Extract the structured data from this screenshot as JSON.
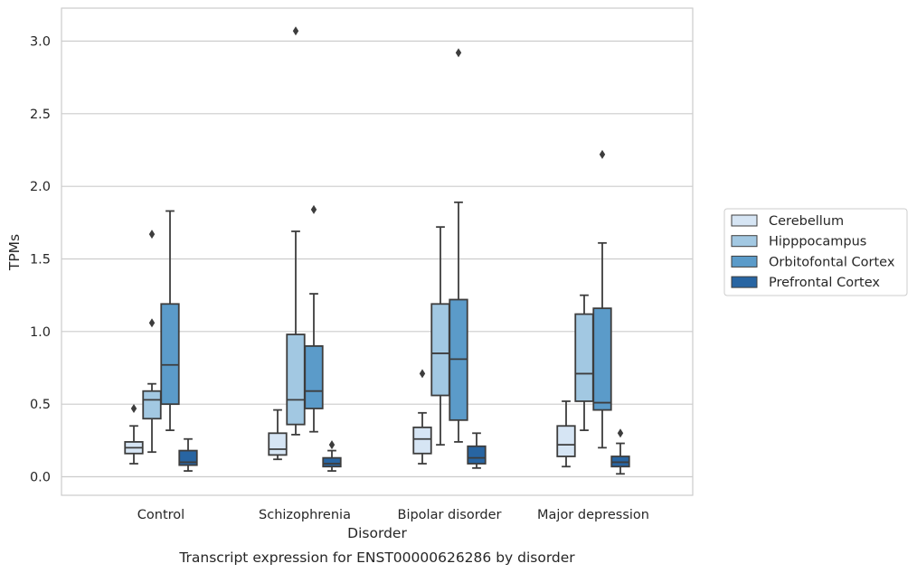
{
  "chart_data": {
    "type": "box",
    "title": "Transcript expression for ENST00000626286 by disorder",
    "xlabel": "Disorder",
    "ylabel": "TPMs",
    "ylim": [
      -0.13,
      3.23
    ],
    "yticks": [
      0.0,
      0.5,
      1.0,
      1.5,
      2.0,
      2.5,
      3.0
    ],
    "ytick_labels": [
      "0.0",
      "0.5",
      "1.0",
      "1.5",
      "2.0",
      "2.5",
      "3.0"
    ],
    "grid": "horizontal",
    "legend_position": "right",
    "categories": [
      "Control",
      "Schizophrenia",
      "Bipolar disorder",
      "Major depression"
    ],
    "series": [
      {
        "name": "Cerebellum",
        "color": "#d6e5f4",
        "boxes": [
          {
            "whisker_low": 0.09,
            "q1": 0.16,
            "median": 0.2,
            "q3": 0.24,
            "whisker_high": 0.35,
            "outliers": [
              0.47
            ]
          },
          {
            "whisker_low": 0.12,
            "q1": 0.15,
            "median": 0.19,
            "q3": 0.3,
            "whisker_high": 0.46,
            "outliers": []
          },
          {
            "whisker_low": 0.09,
            "q1": 0.16,
            "median": 0.26,
            "q3": 0.34,
            "whisker_high": 0.44,
            "outliers": [
              0.71
            ]
          },
          {
            "whisker_low": 0.07,
            "q1": 0.14,
            "median": 0.22,
            "q3": 0.35,
            "whisker_high": 0.52,
            "outliers": []
          }
        ]
      },
      {
        "name": "Hipppocampus",
        "color": "#a2c8e2",
        "boxes": [
          {
            "whisker_low": 0.17,
            "q1": 0.4,
            "median": 0.53,
            "q3": 0.59,
            "whisker_high": 0.64,
            "outliers": [
              1.06,
              1.67
            ]
          },
          {
            "whisker_low": 0.29,
            "q1": 0.36,
            "median": 0.53,
            "q3": 0.98,
            "whisker_high": 1.69,
            "outliers": [
              3.07
            ]
          },
          {
            "whisker_low": 0.22,
            "q1": 0.56,
            "median": 0.85,
            "q3": 1.19,
            "whisker_high": 1.72,
            "outliers": []
          },
          {
            "whisker_low": 0.32,
            "q1": 0.52,
            "median": 0.71,
            "q3": 1.12,
            "whisker_high": 1.25,
            "outliers": []
          }
        ]
      },
      {
        "name": "Orbitofontal Cortex",
        "color": "#5b9bc9",
        "boxes": [
          {
            "whisker_low": 0.32,
            "q1": 0.5,
            "median": 0.77,
            "q3": 1.19,
            "whisker_high": 1.83,
            "outliers": []
          },
          {
            "whisker_low": 0.31,
            "q1": 0.47,
            "median": 0.59,
            "q3": 0.9,
            "whisker_high": 1.26,
            "outliers": [
              1.84
            ]
          },
          {
            "whisker_low": 0.24,
            "q1": 0.39,
            "median": 0.81,
            "q3": 1.22,
            "whisker_high": 1.89,
            "outliers": [
              2.92
            ]
          },
          {
            "whisker_low": 0.2,
            "q1": 0.46,
            "median": 0.51,
            "q3": 1.16,
            "whisker_high": 1.61,
            "outliers": [
              2.22
            ]
          }
        ]
      },
      {
        "name": "Prefrontal Cortex",
        "color": "#2865a2",
        "boxes": [
          {
            "whisker_low": 0.04,
            "q1": 0.08,
            "median": 0.1,
            "q3": 0.18,
            "whisker_high": 0.26,
            "outliers": []
          },
          {
            "whisker_low": 0.04,
            "q1": 0.07,
            "median": 0.09,
            "q3": 0.13,
            "whisker_high": 0.18,
            "outliers": [
              0.22
            ]
          },
          {
            "whisker_low": 0.06,
            "q1": 0.09,
            "median": 0.13,
            "q3": 0.21,
            "whisker_high": 0.3,
            "outliers": []
          },
          {
            "whisker_low": 0.02,
            "q1": 0.07,
            "median": 0.1,
            "q3": 0.14,
            "whisker_high": 0.23,
            "outliers": [
              0.3
            ]
          }
        ]
      }
    ]
  }
}
